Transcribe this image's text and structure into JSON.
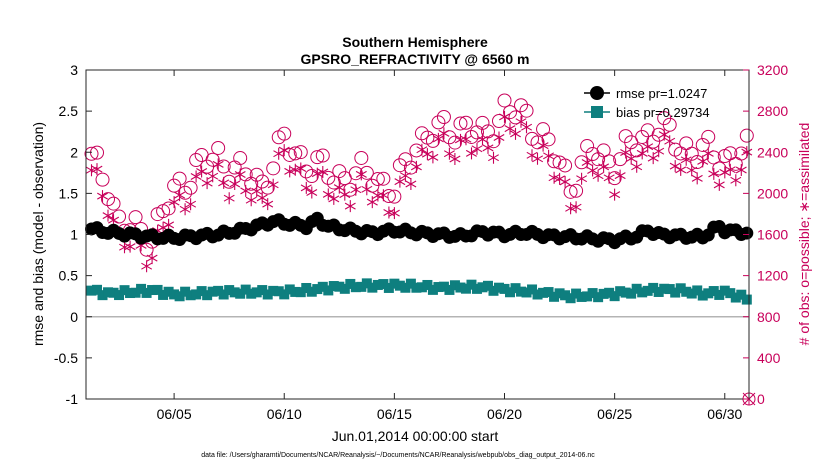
{
  "chart_data": {
    "type": "scatter",
    "title": "Southern Hemisphere",
    "subtitle": "GPSRO_REFRACTIVITY @ 6560 m",
    "xlabel": "Jun.01,2014 00:00:00 start",
    "ylabel": "rmse and bias (model - observation)",
    "ylabel_right": "# of obs: o=possible; ∗=assimilated",
    "footnote": "data file: /Users/gharamti/Documents/NCAR/Reanalysis/~/Documents/NCAR/Reanalysis/webpub/obs_diag_output_2014-06.nc",
    "xlim": [
      1,
      31.1
    ],
    "ylim": [
      -1,
      3
    ],
    "ylim_right": [
      0,
      3200
    ],
    "x_ticks": [
      5,
      10,
      15,
      20,
      25,
      30
    ],
    "x_tick_labels": [
      "06/05",
      "06/10",
      "06/15",
      "06/20",
      "06/25",
      "06/30"
    ],
    "y_ticks": [
      -1,
      -0.5,
      0,
      0.5,
      1,
      1.5,
      2,
      2.5,
      3
    ],
    "y_tick_labels": [
      "-1",
      "-0.5",
      "0",
      "0.5",
      "1",
      "1.5",
      "2",
      "2.5",
      "3"
    ],
    "y_ticks_right": [
      0,
      400,
      800,
      1200,
      1600,
      2000,
      2400,
      2800,
      3200
    ],
    "y_tick_labels_right": [
      "0",
      "400",
      "800",
      "1200",
      "1600",
      "2000",
      "2400",
      "2800",
      "3200"
    ],
    "legend": [
      {
        "label": "rmse pr=1.0247",
        "marker": "filled-circle",
        "color": "#000000"
      },
      {
        "label": "bias pr=0.29734",
        "marker": "filled-square",
        "color": "#0e7f7f"
      }
    ],
    "legend_position": "top-right",
    "colors": {
      "rmse": "#000000",
      "bias": "#0e7f7f",
      "obs": "#c8005a",
      "zero_line": "#b4b4b4"
    },
    "rmse_anchors": {
      "x": [
        1,
        2,
        3,
        4,
        5,
        6,
        7,
        8,
        9,
        9.5,
        10,
        11,
        11.5,
        12,
        13,
        14,
        15,
        16,
        17,
        18,
        19,
        20,
        21,
        22,
        23,
        24,
        25,
        26,
        26.5,
        27,
        28,
        29,
        29.7,
        30,
        31
      ],
      "y": [
        1.08,
        1.03,
        1.0,
        0.97,
        0.96,
        0.98,
        1.0,
        1.05,
        1.12,
        1.16,
        1.14,
        1.1,
        1.18,
        1.1,
        1.05,
        1.02,
        1.05,
        1.02,
        1.0,
        0.98,
        1.03,
        1.0,
        1.02,
        0.98,
        0.97,
        0.95,
        0.93,
        0.98,
        1.05,
        1.0,
        0.98,
        0.97,
        1.1,
        1.05,
        1.02
      ]
    },
    "bias_anchors": {
      "x": [
        1,
        2,
        3,
        4,
        5,
        6,
        7,
        8,
        9,
        10,
        11,
        12,
        13,
        14,
        15,
        16,
        17,
        18,
        19,
        20,
        21,
        22,
        23,
        24,
        25,
        26,
        27,
        28,
        29,
        30,
        31
      ],
      "y": [
        0.33,
        0.28,
        0.3,
        0.32,
        0.27,
        0.28,
        0.3,
        0.3,
        0.3,
        0.3,
        0.32,
        0.35,
        0.37,
        0.38,
        0.38,
        0.37,
        0.35,
        0.36,
        0.36,
        0.33,
        0.31,
        0.28,
        0.25,
        0.26,
        0.28,
        0.31,
        0.33,
        0.32,
        0.28,
        0.3,
        0.22
      ]
    },
    "obs_anchors": {
      "x": [
        1,
        2,
        2.5,
        3,
        4,
        5,
        6,
        7,
        8,
        9,
        10,
        11,
        12,
        13,
        14,
        15,
        16,
        17,
        18,
        19,
        20,
        21,
        22,
        23,
        24,
        25,
        26,
        27,
        28,
        29,
        30,
        31
      ],
      "y": [
        2400,
        2100,
        1700,
        1650,
        1600,
        2000,
        2250,
        2350,
        2200,
        2100,
        2500,
        2300,
        2200,
        2150,
        2200,
        2000,
        2500,
        2600,
        2650,
        2550,
        2800,
        2750,
        2450,
        2100,
        2400,
        2300,
        2500,
        2650,
        2450,
        2400,
        2350,
        2400
      ]
    }
  }
}
